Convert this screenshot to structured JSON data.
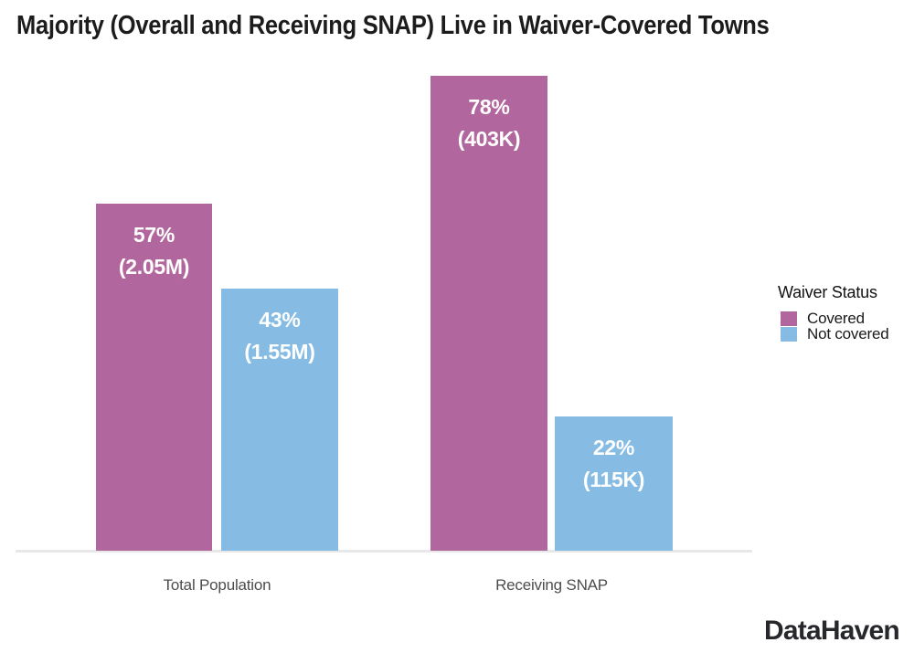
{
  "title": "Majority (Overall and Receiving SNAP) Live in Waiver-Covered Towns",
  "logo_text": "DataHaven",
  "legend": {
    "title": "Waiver Status",
    "items": [
      {
        "label": "Covered",
        "color": "#b1679d"
      },
      {
        "label": "Not covered",
        "color": "#86bbe3"
      }
    ]
  },
  "chart_data": {
    "type": "bar",
    "title": "Majority (Overall and Receiving SNAP) Live in Waiver-Covered Towns",
    "categories": [
      "Total Population",
      "Receiving SNAP"
    ],
    "series": [
      {
        "name": "Covered",
        "color": "#b1679d",
        "values": [
          57,
          78
        ],
        "value_labels": [
          "57%",
          "78%"
        ],
        "count_labels": [
          "(2.05M)",
          "(403K)"
        ]
      },
      {
        "name": "Not covered",
        "color": "#86bbe3",
        "values": [
          43,
          22
        ],
        "value_labels": [
          "43%",
          "22%"
        ],
        "count_labels": [
          "(1.55M)",
          "(115K)"
        ]
      }
    ],
    "unit": "percent of population",
    "xlabel": "",
    "ylabel": "",
    "ylim": [
      0,
      80
    ],
    "grid": false,
    "axis_line_color": "#e8e8e8",
    "bar_label_color": "#ffffff",
    "legend_position": "right",
    "source_brand": "DataHaven"
  }
}
